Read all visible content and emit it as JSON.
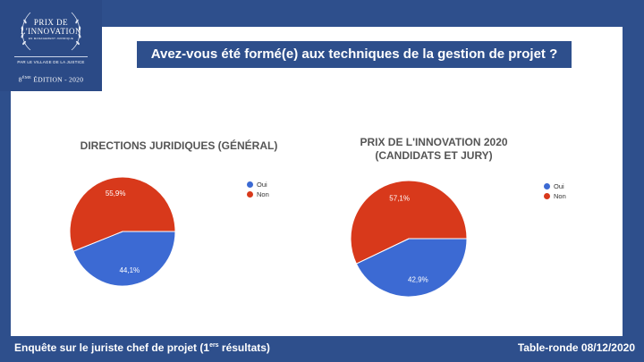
{
  "logo": {
    "line1": "PRIX DE",
    "line2": "L'INNOVATION",
    "line3": "EN MANAGEMENT JURIDIQUE",
    "line4": "PAR LE VILLAGE DE LA JUSTICE",
    "edition_num": "8",
    "edition_sup": "ÈME",
    "edition_rest": " ÉDITION - 2020"
  },
  "title": "Avez-vous été formé(e) aux techniques de la gestion de projet ?",
  "footer": {
    "left_main": "Enquête sur le juriste chef de projet (1",
    "left_sup": "ers",
    "left_end": " résultats)",
    "right": "Table-ronde 08/12/2020"
  },
  "colors": {
    "oui": "#3c6ad3",
    "non": "#d8391b",
    "brand": "#2e4f8c"
  },
  "chart_data": [
    {
      "type": "pie",
      "title": "DIRECTIONS JURIDIQUES (GÉNÉRAL)",
      "categories": [
        "Oui",
        "Non"
      ],
      "values": [
        44.1,
        55.9
      ],
      "labels": [
        "44,1%",
        "55,9%"
      ],
      "legend": "right"
    },
    {
      "type": "pie",
      "title_line1": "PRIX DE L'INNOVATION 2020",
      "title_line2": "(CANDIDATS ET JURY)",
      "categories": [
        "Oui",
        "Non"
      ],
      "values": [
        42.9,
        57.1
      ],
      "labels": [
        "42,9%",
        "57,1%"
      ],
      "legend": "right"
    }
  ]
}
